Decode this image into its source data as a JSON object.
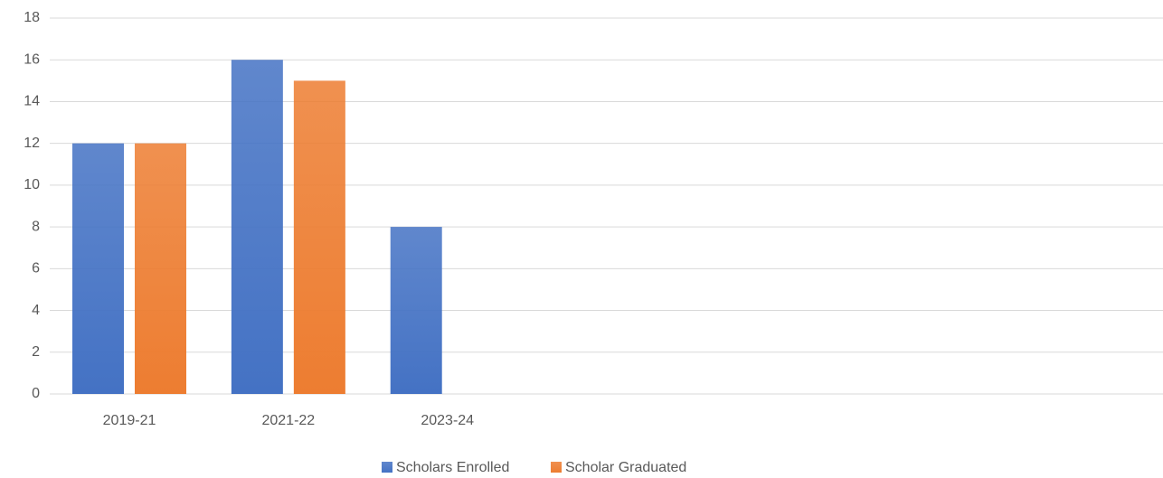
{
  "chart_data": {
    "type": "bar",
    "categories": [
      "2019-21",
      "2021-22",
      "2023-24",
      null,
      null,
      null,
      null
    ],
    "series": [
      {
        "name": "Scholars Enrolled",
        "color": "#4472c4",
        "values": [
          12,
          16,
          8,
          null,
          null,
          null,
          null
        ]
      },
      {
        "name": "Scholar Graduated",
        "color": "#ed7d31",
        "values": [
          12,
          15,
          null,
          null,
          null,
          null,
          null
        ]
      }
    ],
    "ylim": [
      0,
      18
    ],
    "yticks": [
      0,
      2,
      4,
      6,
      8,
      10,
      12,
      14,
      16,
      18
    ],
    "grid": true,
    "legend": "bottom"
  }
}
